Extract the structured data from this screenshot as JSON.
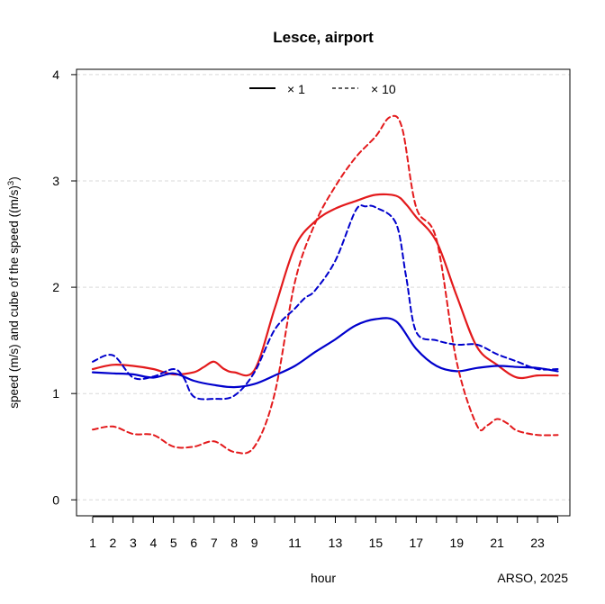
{
  "chart_data": {
    "type": "line",
    "title": "Lesce, airport",
    "xlabel": "hour",
    "ylabel_main": "speed (m/s) and cube of the speed ((m/s)",
    "ylabel_sup": "3",
    "ylabel_end": ")",
    "credit": "ARSO, 2025",
    "xlim": [
      0.2,
      24.6
    ],
    "ylim": [
      -0.15,
      4.05
    ],
    "x_ticks": [
      1,
      2,
      3,
      4,
      5,
      6,
      7,
      8,
      9,
      11,
      13,
      15,
      17,
      19,
      21,
      23
    ],
    "x_minor_ticks": [
      10,
      12,
      14,
      16,
      18,
      20,
      22,
      24
    ],
    "y_ticks": [
      0,
      1,
      2,
      3,
      4
    ],
    "grid": "horizontal dashed",
    "legend": {
      "position": "top",
      "items": [
        {
          "label": "× 1",
          "style": "solid"
        },
        {
          "label": "×  10",
          "style": "dashed"
        }
      ]
    },
    "colors": {
      "red": "#e31a1c",
      "blue": "#0000cc",
      "grid": "#d9d9d9"
    },
    "series": [
      {
        "color": "red",
        "style": "solid",
        "x": [
          1,
          2,
          3,
          4,
          5,
          6,
          6.5,
          7,
          7.5,
          8,
          9,
          10,
          11,
          12,
          13,
          14,
          15,
          16,
          16.5,
          17,
          18,
          19,
          20,
          21,
          22,
          23,
          24
        ],
        "y": [
          1.23,
          1.27,
          1.26,
          1.23,
          1.18,
          1.2,
          1.25,
          1.3,
          1.23,
          1.2,
          1.22,
          1.8,
          2.38,
          2.62,
          2.74,
          2.81,
          2.87,
          2.86,
          2.78,
          2.66,
          2.43,
          1.92,
          1.44,
          1.27,
          1.15,
          1.17,
          1.17
        ]
      },
      {
        "color": "blue",
        "style": "solid",
        "x": [
          1,
          2,
          3,
          4,
          5,
          6,
          7,
          8,
          9,
          10,
          11,
          12,
          13,
          14,
          15,
          16,
          17,
          18,
          19,
          20,
          21,
          22,
          23,
          24
        ],
        "y": [
          1.2,
          1.19,
          1.18,
          1.15,
          1.19,
          1.12,
          1.08,
          1.06,
          1.09,
          1.17,
          1.26,
          1.39,
          1.51,
          1.64,
          1.7,
          1.68,
          1.42,
          1.26,
          1.21,
          1.24,
          1.26,
          1.25,
          1.24,
          1.21
        ]
      },
      {
        "color": "red",
        "style": "dashed",
        "x": [
          1,
          2,
          3,
          4,
          5,
          6,
          7,
          8,
          9,
          10,
          11,
          12,
          13,
          14,
          15,
          15.7,
          16.3,
          17,
          18,
          19,
          20,
          20.5,
          21,
          21.5,
          22,
          23,
          24
        ],
        "y": [
          0.66,
          0.69,
          0.62,
          0.61,
          0.5,
          0.5,
          0.55,
          0.45,
          0.5,
          1.0,
          2.05,
          2.6,
          2.95,
          3.22,
          3.42,
          3.6,
          3.5,
          2.75,
          2.45,
          1.3,
          0.7,
          0.7,
          0.76,
          0.72,
          0.65,
          0.61,
          0.61
        ]
      },
      {
        "color": "blue",
        "style": "dashed",
        "x": [
          1,
          2,
          3,
          4,
          5,
          5.5,
          6,
          7,
          8,
          9,
          10,
          11,
          11.5,
          12,
          13,
          14,
          14.5,
          15,
          16,
          16.5,
          17,
          18,
          19,
          20,
          21,
          22,
          23,
          24
        ],
        "y": [
          1.3,
          1.36,
          1.15,
          1.16,
          1.23,
          1.15,
          0.97,
          0.95,
          0.98,
          1.2,
          1.6,
          1.8,
          1.9,
          1.97,
          2.25,
          2.72,
          2.76,
          2.75,
          2.6,
          2.1,
          1.58,
          1.5,
          1.46,
          1.46,
          1.37,
          1.3,
          1.23,
          1.23
        ]
      }
    ]
  }
}
